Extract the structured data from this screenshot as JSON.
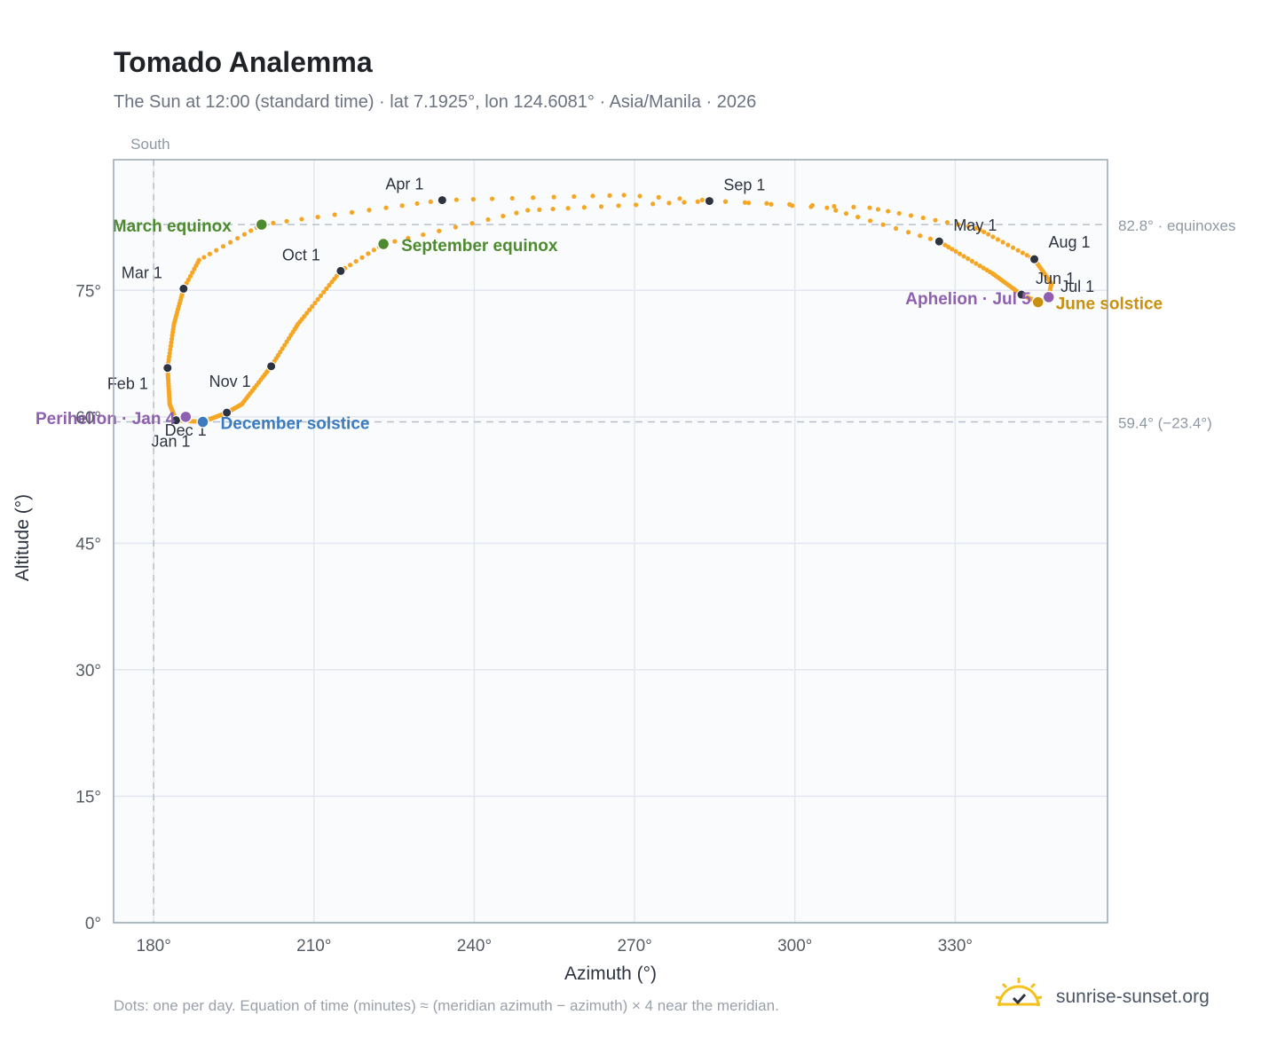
{
  "title": "Tomado Analemma",
  "subtitle": "The Sun at 12:00 (standard time) · lat 7.1925°, lon 124.6081° · Asia/Manila · 2026",
  "footnote": "Dots: one per day. Equation of time (minutes) ≈ (meridian azimuth − azimuth) × 4 near the meridian.",
  "brand": "sunrise-sunset.org",
  "colors": {
    "dots": "#f5a623",
    "month": "#2d3340",
    "equinox": "#4e8b2e",
    "december": "#3b7bbf",
    "june": "#c8900e",
    "perihelion": "#8f5fb0",
    "plot_bg": "#f9fbfd",
    "grid": "#e3e8ee",
    "refline": "#b7c0ca",
    "axis_text": "#555b63"
  },
  "chart_data": {
    "type": "scatter",
    "xlabel": "Azimuth (°)",
    "ylabel": "Altitude (°)",
    "xlim": [
      172.5,
      358.5
    ],
    "ylim": [
      0,
      90.5
    ],
    "x_ticks": [
      180,
      210,
      240,
      270,
      300,
      330
    ],
    "x_tick_labels": [
      "180°",
      "210°",
      "240°",
      "270°",
      "300°",
      "330°"
    ],
    "y_ticks": [
      0,
      15,
      30,
      45,
      60,
      75
    ],
    "y_tick_labels": [
      "0°",
      "15°",
      "30°",
      "45°",
      "60°",
      "75°"
    ],
    "grid": true,
    "meridian": {
      "azimuth": 180,
      "label": "South"
    },
    "reference_lines": [
      {
        "y": 82.8,
        "label": "82.8° · equinoxes"
      },
      {
        "y": 59.4,
        "label": "59.4° (−23.4°)"
      }
    ],
    "daily_path_keypoints": [
      {
        "doy": 0,
        "az": 184.2,
        "alt": 59.6
      },
      {
        "doy": 15,
        "az": 183.0,
        "alt": 61.5
      },
      {
        "doy": 31,
        "az": 182.6,
        "alt": 65.8
      },
      {
        "doy": 45,
        "az": 183.8,
        "alt": 71.0
      },
      {
        "doy": 59,
        "az": 185.6,
        "alt": 75.2
      },
      {
        "doy": 68,
        "az": 188.5,
        "alt": 78.6
      },
      {
        "doy": 78,
        "az": 200.2,
        "alt": 82.8
      },
      {
        "doy": 90,
        "az": 234.0,
        "alt": 85.7
      },
      {
        "doy": 100,
        "az": 268.0,
        "alt": 86.3
      },
      {
        "doy": 110,
        "az": 306.0,
        "alt": 84.8
      },
      {
        "doy": 120,
        "az": 327.0,
        "alt": 80.8
      },
      {
        "doy": 135,
        "az": 337.0,
        "alt": 77.0
      },
      {
        "doy": 151,
        "az": 342.4,
        "alt": 74.5
      },
      {
        "doy": 171,
        "az": 345.5,
        "alt": 73.6
      },
      {
        "doy": 181,
        "az": 347.4,
        "alt": 74.0
      },
      {
        "doy": 195,
        "az": 348.0,
        "alt": 75.8
      },
      {
        "doy": 212,
        "az": 344.8,
        "alt": 78.7
      },
      {
        "doy": 225,
        "az": 334.0,
        "alt": 82.4
      },
      {
        "doy": 235,
        "az": 314.0,
        "alt": 84.8
      },
      {
        "doy": 243,
        "az": 284.0,
        "alt": 85.6
      },
      {
        "doy": 255,
        "az": 250.0,
        "alt": 84.5
      },
      {
        "doy": 265,
        "az": 223.0,
        "alt": 80.5
      },
      {
        "doy": 273,
        "az": 215.0,
        "alt": 77.3
      },
      {
        "doy": 290,
        "az": 207.0,
        "alt": 71.0
      },
      {
        "doy": 304,
        "az": 202.0,
        "alt": 66.0
      },
      {
        "doy": 320,
        "az": 196.5,
        "alt": 61.5
      },
      {
        "doy": 334,
        "az": 193.7,
        "alt": 60.5
      },
      {
        "doy": 354,
        "az": 189.2,
        "alt": 59.4
      },
      {
        "doy": 365,
        "az": 184.2,
        "alt": 59.6
      }
    ],
    "month_markers": [
      {
        "label": "Jan 1",
        "az": 184.2,
        "alt": 59.6
      },
      {
        "label": "Feb 1",
        "az": 182.6,
        "alt": 65.8
      },
      {
        "label": "Mar 1",
        "az": 185.6,
        "alt": 75.2
      },
      {
        "label": "Apr 1",
        "az": 234.0,
        "alt": 85.7
      },
      {
        "label": "May 1",
        "az": 327.0,
        "alt": 80.8
      },
      {
        "label": "Jun 1",
        "az": 342.4,
        "alt": 74.5
      },
      {
        "label": "Jul 1",
        "az": 347.4,
        "alt": 74.0
      },
      {
        "label": "Aug 1",
        "az": 344.8,
        "alt": 78.7
      },
      {
        "label": "Sep 1",
        "az": 284.0,
        "alt": 85.6
      },
      {
        "label": "Oct 1",
        "az": 215.0,
        "alt": 77.3
      },
      {
        "label": "Nov 1",
        "az": 202.0,
        "alt": 66.0
      },
      {
        "label": "Dec 1",
        "az": 193.7,
        "alt": 60.5
      }
    ],
    "events": [
      {
        "label": "March equinox",
        "az": 200.2,
        "alt": 82.8,
        "kind": "equinox"
      },
      {
        "label": "September equinox",
        "az": 223.0,
        "alt": 80.5,
        "kind": "equinox"
      },
      {
        "label": "June solstice",
        "az": 345.5,
        "alt": 73.6,
        "kind": "june"
      },
      {
        "label": "December solstice",
        "az": 189.2,
        "alt": 59.4,
        "kind": "december"
      },
      {
        "label": "Perihelion · Jan 4",
        "az": 186.0,
        "alt": 60.0,
        "kind": "perihelion"
      },
      {
        "label": "Aphelion · Jul 5",
        "az": 347.5,
        "alt": 74.2,
        "kind": "perihelion"
      }
    ]
  }
}
